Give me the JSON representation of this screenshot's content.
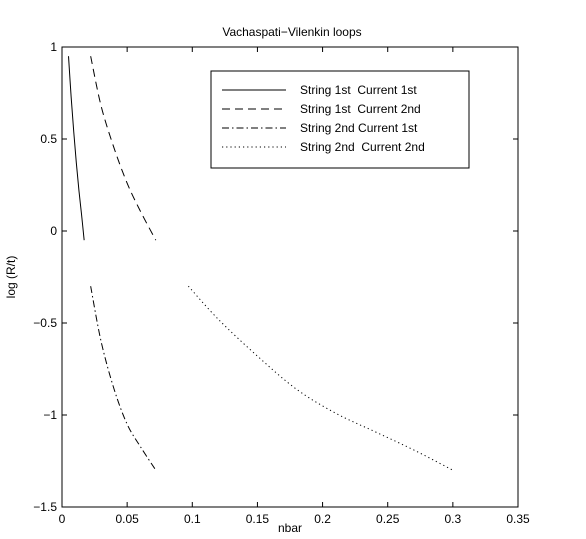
{
  "chart_data": {
    "type": "line",
    "title": "Vachaspati−Vilenkin loops",
    "xlabel": "nbar",
    "ylabel": "log (R/t)",
    "xlim": [
      0,
      0.35
    ],
    "ylim": [
      -1.5,
      1
    ],
    "xticks": [
      "0",
      "0.05",
      "0.1",
      "0.15",
      "0.2",
      "0.25",
      "0.3",
      "0.35"
    ],
    "yticks": [
      "−1.5",
      "−1",
      "−0.5",
      "0",
      "0.5",
      "1"
    ],
    "grid": false,
    "legend_position": "top-right",
    "series": [
      {
        "name": "String 1st  Current 1st",
        "style": "solid",
        "x": [
          0.005,
          0.007,
          0.009,
          0.011,
          0.013,
          0.015,
          0.017
        ],
        "y": [
          0.95,
          0.73,
          0.54,
          0.37,
          0.22,
          0.09,
          -0.05
        ]
      },
      {
        "name": "String 1st  Current 2nd",
        "style": "dashed",
        "x": [
          0.022,
          0.03,
          0.04,
          0.05,
          0.06,
          0.072
        ],
        "y": [
          0.95,
          0.68,
          0.45,
          0.26,
          0.11,
          -0.05
        ]
      },
      {
        "name": "String 2nd Current 1st",
        "style": "dashdot",
        "x": [
          0.022,
          0.03,
          0.04,
          0.05,
          0.06,
          0.072
        ],
        "y": [
          -0.3,
          -0.6,
          -0.86,
          -1.05,
          -1.17,
          -1.3
        ]
      },
      {
        "name": "String 2nd  Current 2nd",
        "style": "dotted",
        "x": [
          0.097,
          0.12,
          0.15,
          0.18,
          0.21,
          0.24,
          0.27,
          0.3
        ],
        "y": [
          -0.3,
          -0.48,
          -0.68,
          -0.86,
          -0.99,
          -1.09,
          -1.19,
          -1.3
        ]
      }
    ]
  }
}
